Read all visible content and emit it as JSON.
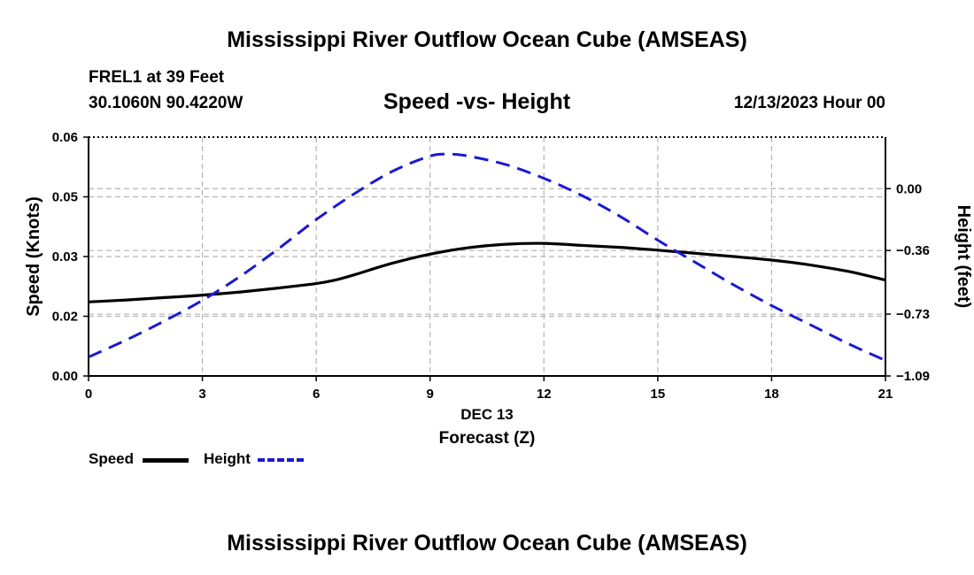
{
  "page_title": "Mississippi River Outflow Ocean Cube (AMSEAS)",
  "header": {
    "station": "FREL1 at 39 Feet",
    "coords": "30.1060N  90.4220W",
    "subtitle": "Speed -vs- Height",
    "datetime": "12/13/2023 Hour 00"
  },
  "footer_title": "Mississippi River Outflow Ocean Cube (AMSEAS)",
  "legend": {
    "speed_label": "Speed",
    "height_label": "Height"
  },
  "chart_data": {
    "type": "line",
    "title": "Speed -vs- Height",
    "xlabel": "Forecast (Z)",
    "xlabel_date": "DEC 13",
    "ylabel": "Speed (Knots)",
    "ylabel_right": "Height (feet)",
    "xlim": [
      0,
      21
    ],
    "ylim_left": [
      0,
      0.06
    ],
    "ylim_right": [
      -1.09,
      0.3
    ],
    "x_ticks": [
      0,
      3,
      6,
      9,
      12,
      15,
      18,
      21
    ],
    "x_tick_labels": [
      "0",
      "3",
      "6",
      "9",
      "12",
      "15",
      "18",
      "21"
    ],
    "y_left_ticks": [
      0,
      0.015,
      0.03,
      0.045,
      0.06
    ],
    "y_left_tick_labels": [
      "0.00",
      "0.02",
      "0.03",
      "0.05",
      "0.06"
    ],
    "y_right_ticks": [
      -1.09,
      -0.73,
      -0.36,
      0.0
    ],
    "y_right_tick_labels": [
      "−1.09",
      "−0.73",
      "−0.36",
      "0.00"
    ],
    "grid": true,
    "legend_position": "bottom-left",
    "series": [
      {
        "name": "Speed",
        "axis": "left",
        "color": "#000000",
        "style": "solid",
        "x": [
          0,
          1,
          2,
          3,
          4,
          5,
          6,
          6.5,
          7,
          8,
          9,
          10,
          11,
          12,
          13,
          14,
          15,
          16,
          17,
          18,
          19,
          20,
          21
        ],
        "values": [
          0.0186,
          0.0191,
          0.0197,
          0.0203,
          0.0211,
          0.0221,
          0.0232,
          0.0241,
          0.0254,
          0.0283,
          0.0306,
          0.0322,
          0.0331,
          0.0333,
          0.0328,
          0.0323,
          0.0316,
          0.0308,
          0.03,
          0.0291,
          0.0279,
          0.0263,
          0.0241
        ]
      },
      {
        "name": "Height",
        "axis": "right",
        "color": "#1a1ad0",
        "style": "dashed",
        "x": [
          0,
          1,
          2,
          3,
          4,
          5,
          6,
          7,
          8,
          9,
          9.5,
          10,
          11,
          12,
          13,
          14,
          15,
          16,
          17,
          18,
          19,
          20,
          21
        ],
        "values": [
          -0.98,
          -0.88,
          -0.77,
          -0.65,
          -0.51,
          -0.35,
          -0.18,
          -0.03,
          0.1,
          0.19,
          0.2,
          0.19,
          0.14,
          0.06,
          -0.04,
          -0.16,
          -0.3,
          -0.43,
          -0.56,
          -0.68,
          -0.79,
          -0.9,
          -1.0
        ]
      }
    ]
  }
}
